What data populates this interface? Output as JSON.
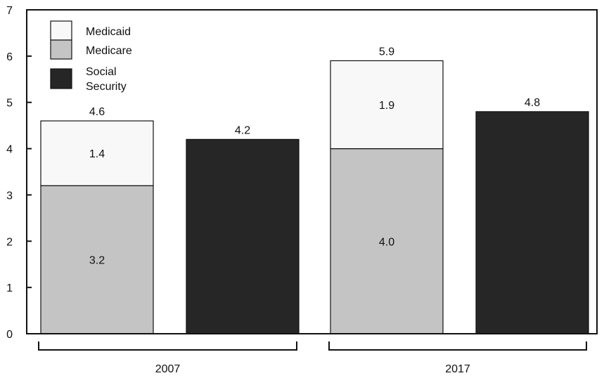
{
  "chart_data": {
    "type": "bar",
    "stacked_with_separate_bar": true,
    "ylim": [
      0,
      7
    ],
    "yticks": [
      "0",
      "1",
      "2",
      "3",
      "4",
      "5",
      "6",
      "7"
    ],
    "grid": false,
    "legend_position": "top-left",
    "legend": [
      {
        "key": "medicaid",
        "lines": [
          "Medicaid"
        ],
        "color": "#f8f8f8"
      },
      {
        "key": "medicare",
        "lines": [
          "Medicare"
        ],
        "color": "#c4c4c4"
      },
      {
        "key": "social_security",
        "lines": [
          "Social",
          "Security"
        ],
        "color": "#262626"
      }
    ],
    "groups": [
      {
        "label": "2007",
        "stacked_total": 4.6,
        "stacked_total_label": "4.6",
        "medicare": 3.2,
        "medicare_label": "3.2",
        "medicaid": 1.4,
        "medicaid_label": "1.4",
        "social_security": 4.2,
        "social_security_label": "4.2"
      },
      {
        "label": "2017",
        "stacked_total": 5.9,
        "stacked_total_label": "5.9",
        "medicare": 4.0,
        "medicare_label": "4.0",
        "medicaid": 1.9,
        "medicaid_label": "1.9",
        "social_security": 4.8,
        "social_security_label": "4.8"
      }
    ],
    "colors": {
      "medicaid": "#f8f8f8",
      "medicare": "#c4c4c4",
      "social_security": "#262626",
      "axis": "#111111"
    }
  }
}
